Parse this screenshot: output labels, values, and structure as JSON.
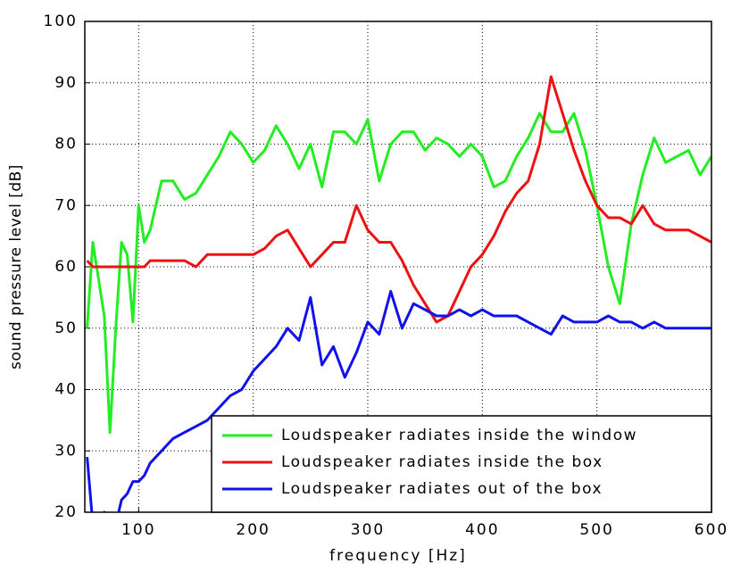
{
  "chart_data": {
    "type": "line",
    "xlabel": "frequency [Hz]",
    "ylabel": "sound pressure level [dB]",
    "x": [
      55,
      60,
      65,
      70,
      75,
      80,
      85,
      90,
      95,
      100,
      105,
      110,
      120,
      130,
      140,
      150,
      160,
      170,
      180,
      190,
      200,
      210,
      220,
      230,
      240,
      250,
      260,
      270,
      280,
      290,
      300,
      310,
      320,
      330,
      340,
      350,
      360,
      370,
      380,
      390,
      400,
      410,
      420,
      430,
      440,
      450,
      460,
      470,
      480,
      490,
      500,
      510,
      520,
      530,
      540,
      550,
      560,
      570,
      580,
      590,
      600
    ],
    "series": [
      {
        "name": "Loudspeaker radiates inside the window",
        "color": "#22ee22",
        "values": [
          50,
          64,
          58,
          52,
          33,
          50,
          64,
          62,
          51,
          70,
          64,
          66,
          74,
          74,
          71,
          72,
          75,
          78,
          82,
          80,
          77,
          79,
          83,
          80,
          76,
          80,
          73,
          82,
          82,
          80,
          84,
          74,
          80,
          82,
          82,
          79,
          81,
          80,
          78,
          80,
          78,
          73,
          74,
          78,
          81,
          85,
          82,
          82,
          85,
          79,
          70,
          60,
          54,
          67,
          75,
          81,
          77,
          78,
          79,
          75,
          78
        ]
      },
      {
        "name": "Loudspeaker radiates inside the box",
        "color": "#ee1111",
        "values": [
          61,
          60,
          60,
          60,
          60,
          60,
          60,
          60,
          60,
          60,
          60,
          61,
          61,
          61,
          61,
          60,
          62,
          62,
          62,
          62,
          62,
          63,
          65,
          66,
          63,
          60,
          62,
          64,
          64,
          70,
          66,
          64,
          64,
          61,
          57,
          54,
          51,
          52,
          56,
          60,
          62,
          65,
          69,
          72,
          74,
          80,
          91,
          85,
          79,
          74,
          70,
          68,
          68,
          67,
          70,
          67,
          66,
          66,
          66,
          65,
          64
        ]
      },
      {
        "name": "Loudspeaker radiates out of the box",
        "color": "#1111ee",
        "values": [
          29,
          18,
          19,
          20,
          19,
          18,
          22,
          23,
          25,
          25,
          26,
          28,
          30,
          32,
          33,
          34,
          35,
          37,
          39,
          40,
          43,
          45,
          47,
          50,
          48,
          55,
          44,
          47,
          42,
          46,
          51,
          49,
          56,
          50,
          54,
          53,
          52,
          52,
          53,
          52,
          53,
          52,
          52,
          52,
          51,
          50,
          49,
          52,
          51,
          51,
          51,
          52,
          51,
          51,
          50,
          51,
          50,
          50,
          50,
          50,
          50
        ]
      }
    ],
    "xlim": [
      53,
      600
    ],
    "ylim": [
      20,
      100
    ],
    "xticks": [
      100,
      200,
      300,
      400,
      500,
      600
    ],
    "yticks": [
      20,
      30,
      40,
      50,
      60,
      70,
      80,
      90,
      100
    ],
    "grid": true,
    "legend": "lower right"
  }
}
